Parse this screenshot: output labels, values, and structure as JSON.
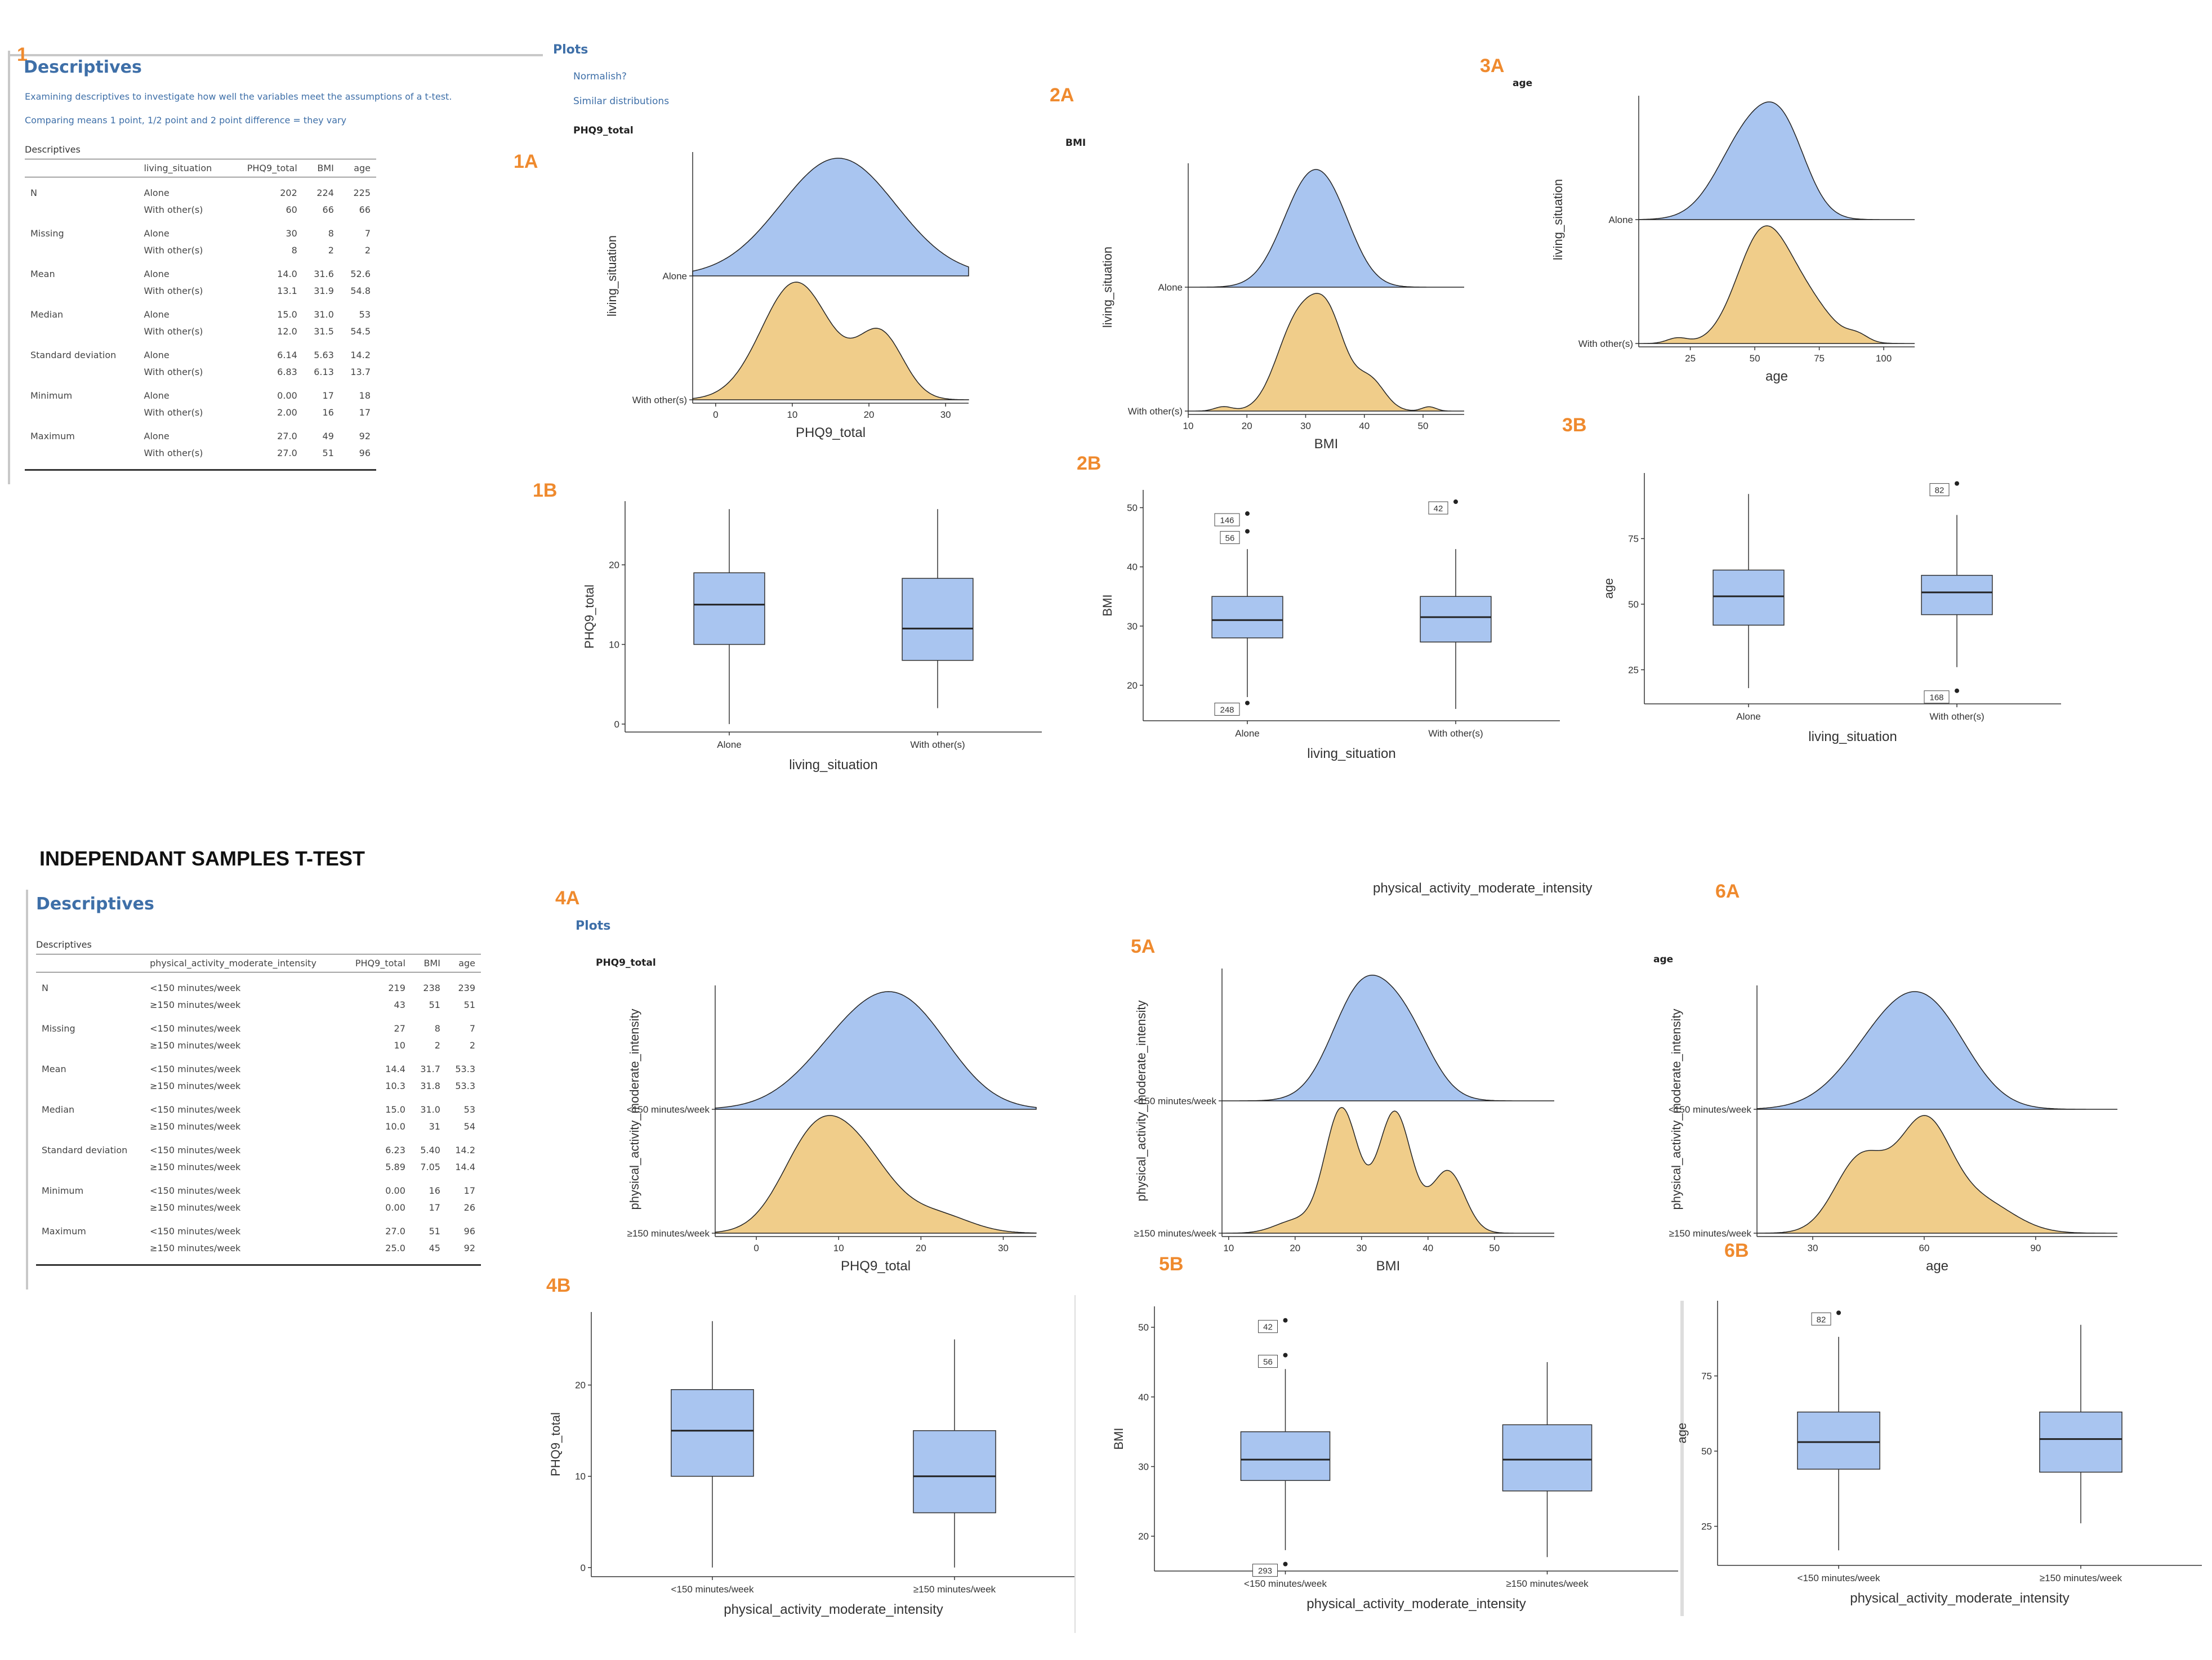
{
  "section1": {
    "panel_label": "1",
    "heading": "Descriptives",
    "note1": "Examining descriptives to investigate how well the variables meet the assumptions of a t-test.",
    "note2": "Comparing means 1 point, 1/2 point and 2 point difference = they vary",
    "caption": "Descriptives",
    "headers": [
      "",
      "living_situation",
      "PHQ9_total",
      "BMI",
      "age"
    ],
    "rows": [
      [
        "N",
        "Alone",
        "202",
        "224",
        "225"
      ],
      [
        "",
        "With other(s)",
        "60",
        "66",
        "66"
      ],
      [
        "Missing",
        "Alone",
        "30",
        "8",
        "7"
      ],
      [
        "",
        "With other(s)",
        "8",
        "2",
        "2"
      ],
      [
        "Mean",
        "Alone",
        "14.0",
        "31.6",
        "52.6"
      ],
      [
        "",
        "With other(s)",
        "13.1",
        "31.9",
        "54.8"
      ],
      [
        "Median",
        "Alone",
        "15.0",
        "31.0",
        "53"
      ],
      [
        "",
        "With other(s)",
        "12.0",
        "31.5",
        "54.5"
      ],
      [
        "Standard deviation",
        "Alone",
        "6.14",
        "5.63",
        "14.2"
      ],
      [
        "",
        "With other(s)",
        "6.83",
        "6.13",
        "13.7"
      ],
      [
        "Minimum",
        "Alone",
        "0.00",
        "17",
        "18"
      ],
      [
        "",
        "With other(s)",
        "2.00",
        "16",
        "17"
      ],
      [
        "Maximum",
        "Alone",
        "27.0",
        "49",
        "92"
      ],
      [
        "",
        "With other(s)",
        "27.0",
        "51",
        "96"
      ]
    ]
  },
  "plots_section": {
    "heading": "Plots",
    "link1": "Normalish?",
    "link2": "Similar distributions",
    "title_phq": "PHQ9_total",
    "title_bmi": "BMI",
    "title_age": "age"
  },
  "section4": {
    "title": "INDEPENDANT SAMPLES T-TEST",
    "heading": "Descriptives",
    "caption": "Descriptives",
    "plots_heading": "Plots",
    "title_phq": "PHQ9_total",
    "title_age": "age",
    "floating_label": "physical_activity_moderate_intensity",
    "headers": [
      "",
      "physical_activity_moderate_intensity",
      "PHQ9_total",
      "BMI",
      "age"
    ],
    "rows": [
      [
        "N",
        "<150 minutes/week",
        "219",
        "238",
        "239"
      ],
      [
        "",
        "≥150 minutes/week",
        "43",
        "51",
        "51"
      ],
      [
        "Missing",
        "<150 minutes/week",
        "27",
        "8",
        "7"
      ],
      [
        "",
        "≥150 minutes/week",
        "10",
        "2",
        "2"
      ],
      [
        "Mean",
        "<150 minutes/week",
        "14.4",
        "31.7",
        "53.3"
      ],
      [
        "",
        "≥150 minutes/week",
        "10.3",
        "31.8",
        "53.3"
      ],
      [
        "Median",
        "<150 minutes/week",
        "15.0",
        "31.0",
        "53"
      ],
      [
        "",
        "≥150 minutes/week",
        "10.0",
        "31",
        "54"
      ],
      [
        "Standard deviation",
        "<150 minutes/week",
        "6.23",
        "5.40",
        "14.2"
      ],
      [
        "",
        "≥150 minutes/week",
        "5.89",
        "7.05",
        "14.4"
      ],
      [
        "Minimum",
        "<150 minutes/week",
        "0.00",
        "16",
        "17"
      ],
      [
        "",
        "≥150 minutes/week",
        "0.00",
        "17",
        "26"
      ],
      [
        "Maximum",
        "<150 minutes/week",
        "27.0",
        "51",
        "96"
      ],
      [
        "",
        "≥150 minutes/week",
        "25.0",
        "45",
        "92"
      ]
    ]
  },
  "colors": {
    "blue": "#a9c5f0",
    "orange": "#f0cd8a",
    "accent": "#ef8a2e",
    "link": "#3e6fa8"
  },
  "chart_data": [
    {
      "id": "1A",
      "label": "1A",
      "type": "area",
      "subtype": "ridgeline",
      "title": "PHQ9_total",
      "xlabel": "PHQ9_total",
      "ylabel": "living_situation",
      "xlim": [
        -3,
        33
      ],
      "xticks": [
        0,
        10,
        20,
        30
      ],
      "groups": [
        {
          "name": "Alone",
          "color": "#a9c5f0",
          "peaks": [
            [
              16,
              7.5,
              1
            ]
          ]
        },
        {
          "name": "With other(s)",
          "color": "#f0cd8a",
          "peaks": [
            [
              10.5,
              4.5,
              1
            ],
            [
              21.5,
              3,
              0.55
            ]
          ]
        }
      ]
    },
    {
      "id": "2A",
      "label": "2A",
      "type": "area",
      "subtype": "ridgeline",
      "title": "BMI",
      "xlabel": "BMI",
      "ylabel": "living_situation",
      "xlim": [
        10,
        57
      ],
      "xticks": [
        10,
        20,
        30,
        40,
        50
      ],
      "groups": [
        {
          "name": "Alone",
          "color": "#a9c5f0",
          "peaks": [
            [
              30,
              4.5,
              1
            ],
            [
              35,
              4,
              0.55
            ]
          ]
        },
        {
          "name": "With other(s)",
          "color": "#f0cd8a",
          "peaks": [
            [
              28.5,
              3.5,
              1
            ],
            [
              34,
              3,
              0.95
            ],
            [
              41,
              2.5,
              0.35
            ],
            [
              51,
              1.2,
              0.05
            ],
            [
              16,
              1.5,
              0.05
            ]
          ]
        }
      ]
    },
    {
      "id": "3A",
      "label": "3A",
      "type": "area",
      "subtype": "ridgeline",
      "title": "age",
      "xlabel": "age",
      "ylabel": "living_situation",
      "xlim": [
        5,
        112
      ],
      "xticks": [
        25,
        50,
        75,
        100
      ],
      "groups": [
        {
          "name": "Alone",
          "color": "#a9c5f0",
          "peaks": [
            [
              48,
              12,
              1
            ],
            [
              62,
              9,
              0.7
            ]
          ]
        },
        {
          "name": "With other(s)",
          "color": "#f0cd8a",
          "peaks": [
            [
              53,
              10,
              1
            ],
            [
              70,
              10,
              0.35
            ],
            [
              20,
              4,
              0.05
            ],
            [
              90,
              4,
              0.06
            ]
          ]
        }
      ]
    },
    {
      "id": "1B",
      "label": "1B",
      "type": "box",
      "xlabel": "living_situation",
      "ylabel": "PHQ9_total",
      "ylim": [
        -1,
        28
      ],
      "yticks": [
        0,
        10,
        20
      ],
      "boxes": [
        {
          "name": "Alone",
          "q1": 10,
          "median": 15,
          "q3": 19,
          "wmin": 0,
          "wmax": 27
        },
        {
          "name": "With other(s)",
          "q1": 8,
          "median": 12,
          "q3": 18.3,
          "wmin": 2,
          "wmax": 27
        }
      ],
      "outliers": []
    },
    {
      "id": "2B",
      "label": "2B",
      "type": "box",
      "xlabel": "living_situation",
      "ylabel": "BMI",
      "ylim": [
        14,
        53
      ],
      "yticks": [
        20,
        30,
        40,
        50
      ],
      "boxes": [
        {
          "name": "Alone",
          "q1": 28,
          "median": 31,
          "q3": 35,
          "wmin": 18,
          "wmax": 43
        },
        {
          "name": "With other(s)",
          "q1": 27.3,
          "median": 31.5,
          "q3": 35,
          "wmin": 16,
          "wmax": 43
        }
      ],
      "outliers": [
        {
          "box": 0,
          "y": 49,
          "label": "146"
        },
        {
          "box": 0,
          "y": 46,
          "label": "56"
        },
        {
          "box": 0,
          "y": 17,
          "label": "248"
        },
        {
          "box": 1,
          "y": 51,
          "label": "42"
        }
      ]
    },
    {
      "id": "3B",
      "label": "3B",
      "type": "box",
      "xlabel": "living_situation",
      "ylabel": "age",
      "ylim": [
        12,
        100
      ],
      "yticks": [
        25,
        50,
        75
      ],
      "boxes": [
        {
          "name": "Alone",
          "q1": 42,
          "median": 53,
          "q3": 63,
          "wmin": 18,
          "wmax": 92
        },
        {
          "name": "With other(s)",
          "q1": 46,
          "median": 54.5,
          "q3": 61,
          "wmin": 26,
          "wmax": 84
        }
      ],
      "outliers": [
        {
          "box": 1,
          "y": 96,
          "label": "82"
        },
        {
          "box": 1,
          "y": 17,
          "label": "168"
        }
      ]
    },
    {
      "id": "4A",
      "label": "4A",
      "type": "area",
      "subtype": "ridgeline",
      "title": "PHQ9_total",
      "xlabel": "PHQ9_total",
      "ylabel": "physical_activity_moderate_intensity",
      "xlim": [
        -5,
        34
      ],
      "xticks": [
        0,
        10,
        20,
        30
      ],
      "groups": [
        {
          "name": "<150 minutes/week",
          "color": "#a9c5f0",
          "peaks": [
            [
              12,
              6,
              0.75
            ],
            [
              19,
              5.5,
              0.8
            ]
          ]
        },
        {
          "name": "≥150 minutes/week",
          "color": "#f0cd8a",
          "peaks": [
            [
              7,
              4,
              1
            ],
            [
              13,
              4,
              0.7
            ],
            [
              22,
              4,
              0.2
            ]
          ]
        }
      ]
    },
    {
      "id": "5A",
      "label": "5A",
      "type": "area",
      "subtype": "ridgeline",
      "title": "BMI",
      "xlabel": "BMI",
      "ylabel": "physical_activity_moderate_intensity",
      "xlim": [
        9,
        59
      ],
      "xticks": [
        10,
        20,
        30,
        40,
        50
      ],
      "groups": [
        {
          "name": "<150 minutes/week",
          "color": "#a9c5f0",
          "peaks": [
            [
              30,
              4.5,
              1
            ],
            [
              37,
              4,
              0.55
            ]
          ]
        },
        {
          "name": "≥150 minutes/week",
          "color": "#f0cd8a",
          "peaks": [
            [
              27,
              2.5,
              0.8
            ],
            [
              35,
              2.5,
              0.78
            ],
            [
              43,
              2.5,
              0.4
            ],
            [
              20,
              3,
              0.08
            ]
          ]
        }
      ]
    },
    {
      "id": "6A",
      "label": "6A",
      "type": "area",
      "subtype": "ridgeline",
      "title": "age",
      "xlabel": "age",
      "ylabel": "physical_activity_moderate_intensity",
      "xlim": [
        15,
        112
      ],
      "xticks": [
        30,
        60,
        90
      ],
      "groups": [
        {
          "name": "<150 minutes/week",
          "color": "#a9c5f0",
          "peaks": [
            [
              52,
              12,
              1
            ],
            [
              64,
              10,
              0.65
            ]
          ]
        },
        {
          "name": "≥150 minutes/week",
          "color": "#f0cd8a",
          "peaks": [
            [
              43,
              7,
              0.6
            ],
            [
              60,
              7,
              0.85
            ],
            [
              75,
              9,
              0.25
            ]
          ]
        }
      ]
    },
    {
      "id": "4B",
      "label": "4B",
      "type": "box",
      "xlabel": "physical_activity_moderate_intensity",
      "ylabel": "PHQ9_total",
      "ylim": [
        -1,
        28
      ],
      "yticks": [
        0,
        10,
        20
      ],
      "boxes": [
        {
          "name": "<150 minutes/week",
          "q1": 10,
          "median": 15,
          "q3": 19.5,
          "wmin": 0,
          "wmax": 27
        },
        {
          "name": "≥150 minutes/week",
          "q1": 6,
          "median": 10,
          "q3": 15,
          "wmin": 0,
          "wmax": 25
        }
      ],
      "outliers": []
    },
    {
      "id": "5B",
      "label": "5B",
      "type": "box",
      "xlabel": "physical_activity_moderate_intensity",
      "ylabel": "BMI",
      "ylim": [
        15,
        53
      ],
      "yticks": [
        20,
        30,
        40,
        50
      ],
      "boxes": [
        {
          "name": "<150 minutes/week",
          "q1": 28,
          "median": 31,
          "q3": 35,
          "wmin": 18,
          "wmax": 44
        },
        {
          "name": "≥150 minutes/week",
          "q1": 26.5,
          "median": 31,
          "q3": 36,
          "wmin": 17,
          "wmax": 45
        }
      ],
      "outliers": [
        {
          "box": 0,
          "y": 51,
          "label": "42"
        },
        {
          "box": 0,
          "y": 46,
          "label": "56"
        },
        {
          "box": 0,
          "y": 16,
          "label": "293"
        }
      ]
    },
    {
      "id": "6B",
      "label": "6B",
      "type": "box",
      "xlabel": "physical_activity_moderate_intensity",
      "ylabel": "age",
      "ylim": [
        12,
        100
      ],
      "yticks": [
        25,
        50,
        75
      ],
      "boxes": [
        {
          "name": "<150 minutes/week",
          "q1": 44,
          "median": 53,
          "q3": 63,
          "wmin": 17,
          "wmax": 88
        },
        {
          "name": "≥150 minutes/week",
          "q1": 43,
          "median": 54,
          "q3": 63,
          "wmin": 26,
          "wmax": 92
        }
      ],
      "outliers": [
        {
          "box": 0,
          "y": 96,
          "label": "82"
        }
      ]
    }
  ]
}
